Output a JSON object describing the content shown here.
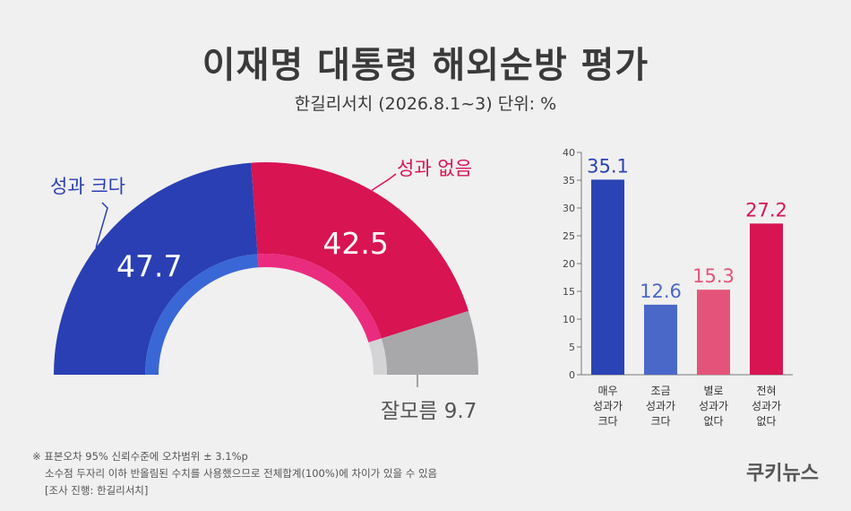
{
  "title": "이재명 대통령 해외순방 평가",
  "subtitle": "한길리서치 (2026.8.1~3) 단위: %",
  "colors": {
    "blue": "#2a3fb3",
    "blue_inner": "#3a67d6",
    "red": "#d81452",
    "red_inner": "#ea2c7e",
    "gray": "#a8a8ab",
    "gray_inner": "#d4d4d6",
    "bar_blue_dark": "#2a44b5",
    "bar_blue_light": "#4a68c8",
    "bar_pink": "#e4547a",
    "bar_red": "#d81452"
  },
  "chart_data": [
    {
      "type": "pie",
      "subtype": "semicircle-donut",
      "slices": [
        {
          "label": "성과 크다",
          "value": 47.7,
          "value_text": "47.7"
        },
        {
          "label": "성과 없음",
          "value": 42.5,
          "value_text": "42.5"
        },
        {
          "label": "잘모름",
          "value": 9.7,
          "value_text": "잘모름 9.7"
        }
      ]
    },
    {
      "type": "bar",
      "categories": [
        [
          "매우",
          "성과가",
          "크다"
        ],
        [
          "조금",
          "성과가",
          "크다"
        ],
        [
          "별로",
          "성과가",
          "없다"
        ],
        [
          "전혀",
          "성과가",
          "없다"
        ]
      ],
      "values": [
        35.1,
        12.6,
        15.3,
        27.2
      ],
      "value_labels": [
        "35.1",
        "12.6",
        "15.3",
        "27.2"
      ],
      "ylim": [
        0,
        40
      ],
      "yticks": [
        "0",
        "5",
        "10",
        "15",
        "20",
        "25",
        "30",
        "35",
        "40"
      ],
      "grid": false
    }
  ],
  "notes": [
    "※ 표본오차 95% 신뢰수준에 오차범위 ± 3.1%p",
    "소수점 두자리 이하 반올림된 수치를 사용했으므로 전체합계(100%)에 차이가 있을 수 있음",
    "[조사 진행: 한길리서치]"
  ],
  "brand": "쿠키뉴스"
}
